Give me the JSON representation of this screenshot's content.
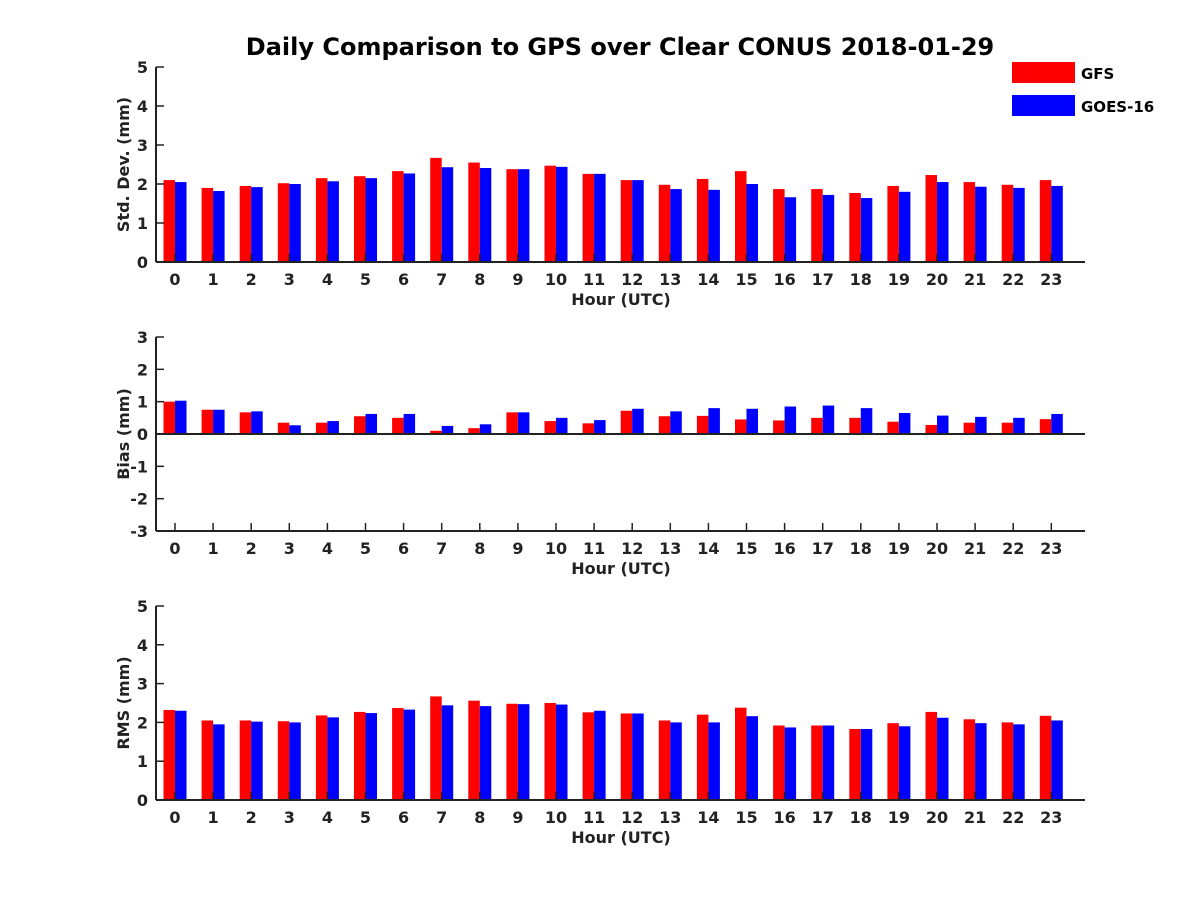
{
  "title": "Daily Comparison to GPS over Clear CONUS 2018-01-29",
  "colors": {
    "GFS": "#ff0000",
    "GOES-16": "#0000ff",
    "axis": "#222222"
  },
  "legend": [
    {
      "name": "GFS",
      "color": "#ff0000"
    },
    {
      "name": "GOES-16",
      "color": "#0000ff"
    }
  ],
  "chart_data": [
    {
      "type": "bar",
      "id": "std",
      "ylabel": "Std. Dev. (mm)",
      "xlabel": "Hour (UTC)",
      "ylim": [
        0,
        5
      ],
      "yticks": [
        "0",
        "1",
        "2",
        "3",
        "4",
        "5"
      ],
      "categories": [
        "0",
        "1",
        "2",
        "3",
        "4",
        "5",
        "6",
        "7",
        "8",
        "9",
        "10",
        "11",
        "12",
        "13",
        "14",
        "15",
        "16",
        "17",
        "18",
        "19",
        "20",
        "21",
        "22",
        "23"
      ],
      "series": [
        {
          "name": "GFS",
          "values": [
            2.1,
            1.9,
            1.95,
            2.02,
            2.15,
            2.2,
            2.33,
            2.67,
            2.55,
            2.38,
            2.47,
            2.26,
            2.1,
            1.98,
            2.13,
            2.33,
            1.87,
            1.87,
            1.77,
            1.95,
            2.23,
            2.05,
            1.98,
            2.1
          ]
        },
        {
          "name": "GOES-16",
          "values": [
            2.05,
            1.82,
            1.92,
            2.0,
            2.07,
            2.15,
            2.27,
            2.43,
            2.41,
            2.38,
            2.44,
            2.26,
            2.1,
            1.87,
            1.85,
            2.0,
            1.66,
            1.72,
            1.64,
            1.8,
            2.05,
            1.93,
            1.9,
            1.95
          ]
        }
      ]
    },
    {
      "type": "bar",
      "id": "bias",
      "ylabel": "Bias (mm)",
      "xlabel": "Hour (UTC)",
      "ylim": [
        -3,
        3
      ],
      "yticks": [
        "-3",
        "-2",
        "-1",
        "0",
        "1",
        "2",
        "3"
      ],
      "categories": [
        "0",
        "1",
        "2",
        "3",
        "4",
        "5",
        "6",
        "7",
        "8",
        "9",
        "10",
        "11",
        "12",
        "13",
        "14",
        "15",
        "16",
        "17",
        "18",
        "19",
        "20",
        "21",
        "22",
        "23"
      ],
      "series": [
        {
          "name": "GFS",
          "values": [
            1.0,
            0.75,
            0.67,
            0.35,
            0.35,
            0.55,
            0.5,
            0.1,
            0.18,
            0.67,
            0.4,
            0.33,
            0.72,
            0.55,
            0.56,
            0.45,
            0.42,
            0.5,
            0.5,
            0.38,
            0.28,
            0.35,
            0.35,
            0.46
          ]
        },
        {
          "name": "GOES-16",
          "values": [
            1.03,
            0.75,
            0.7,
            0.27,
            0.4,
            0.62,
            0.62,
            0.25,
            0.3,
            0.67,
            0.5,
            0.43,
            0.78,
            0.7,
            0.8,
            0.78,
            0.85,
            0.88,
            0.8,
            0.65,
            0.57,
            0.53,
            0.5,
            0.62
          ]
        }
      ]
    },
    {
      "type": "bar",
      "id": "rms",
      "ylabel": "RMS (mm)",
      "xlabel": "Hour (UTC)",
      "ylim": [
        0,
        5
      ],
      "yticks": [
        "0",
        "1",
        "2",
        "3",
        "4",
        "5"
      ],
      "categories": [
        "0",
        "1",
        "2",
        "3",
        "4",
        "5",
        "6",
        "7",
        "8",
        "9",
        "10",
        "11",
        "12",
        "13",
        "14",
        "15",
        "16",
        "17",
        "18",
        "19",
        "20",
        "21",
        "22",
        "23"
      ],
      "series": [
        {
          "name": "GFS",
          "values": [
            2.32,
            2.05,
            2.05,
            2.03,
            2.18,
            2.27,
            2.37,
            2.67,
            2.56,
            2.48,
            2.5,
            2.26,
            2.23,
            2.05,
            2.2,
            2.38,
            1.92,
            1.92,
            1.83,
            1.98,
            2.27,
            2.08,
            2.0,
            2.17
          ]
        },
        {
          "name": "GOES-16",
          "values": [
            2.3,
            1.95,
            2.02,
            2.0,
            2.13,
            2.24,
            2.33,
            2.44,
            2.42,
            2.47,
            2.46,
            2.3,
            2.23,
            2.0,
            2.0,
            2.16,
            1.87,
            1.92,
            1.83,
            1.9,
            2.12,
            1.98,
            1.95,
            2.05
          ]
        }
      ]
    }
  ]
}
